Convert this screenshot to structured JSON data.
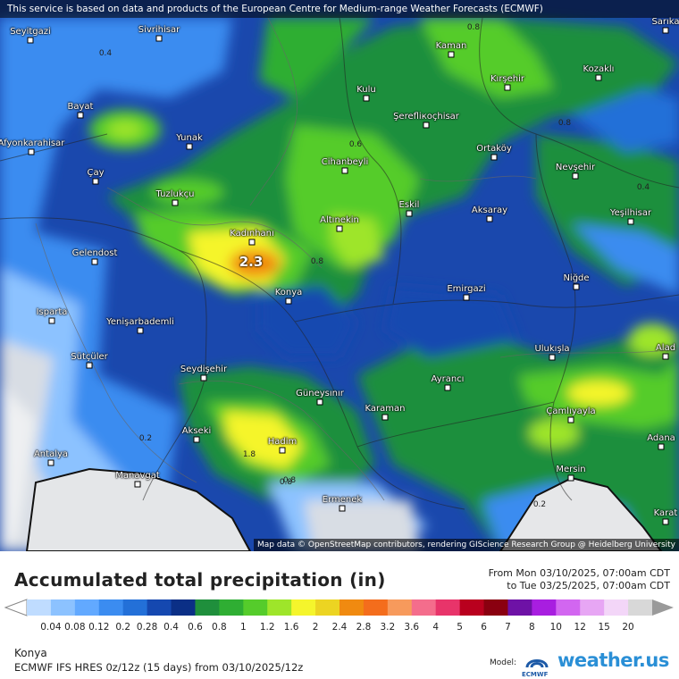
{
  "map": {
    "banner": "This service is based on data and products of the European Centre for Medium-range Weather Forecasts (ECMWF)",
    "attribution": "Map data © OpenStreetMap contributors, rendering GIScience Research Group @ Heidelberg University",
    "max_value": "2.3",
    "cities": [
      {
        "name": "Seyitgazi"
      },
      {
        "name": "Sivrihisar"
      },
      {
        "name": "Kaman"
      },
      {
        "name": "Sarıka"
      },
      {
        "name": "Kozaklı"
      },
      {
        "name": "Kırşehir"
      },
      {
        "name": "Kulu"
      },
      {
        "name": "Bayat"
      },
      {
        "name": "Şerefliкoçhisar"
      },
      {
        "name": "Afyonkarahisar"
      },
      {
        "name": "Yunak"
      },
      {
        "name": "Ortaköy"
      },
      {
        "name": "Cihanbeyli"
      },
      {
        "name": "Nevşehir"
      },
      {
        "name": "Çay"
      },
      {
        "name": "Tuzlukçu"
      },
      {
        "name": "Eskil"
      },
      {
        "name": "Aksaray"
      },
      {
        "name": "Yeşilhisar"
      },
      {
        "name": "Kadınhanı"
      },
      {
        "name": "Altınekin"
      },
      {
        "name": "Gelendost"
      },
      {
        "name": "Konya"
      },
      {
        "name": "Niğde"
      },
      {
        "name": "Emirgazi"
      },
      {
        "name": "Isparta"
      },
      {
        "name": "Yenişarbademli"
      },
      {
        "name": "Ulukışla"
      },
      {
        "name": "Sütçüler"
      },
      {
        "name": "Seydişehir"
      },
      {
        "name": "Alad"
      },
      {
        "name": "Güneysınır"
      },
      {
        "name": "Ayrancı"
      },
      {
        "name": "Karaman"
      },
      {
        "name": "Çamlıyayla"
      },
      {
        "name": "Akseki"
      },
      {
        "name": "Hadim"
      },
      {
        "name": "Adana"
      },
      {
        "name": "Antalya"
      },
      {
        "name": "Manavgat"
      },
      {
        "name": "Mersin"
      },
      {
        "name": "Ermenek"
      },
      {
        "name": "Karat"
      }
    ],
    "contours": [
      "0.4",
      "0.8",
      "0.6",
      "0.8",
      "0.8",
      "0.4",
      "0.8",
      "0.2",
      "1.8",
      "0.8",
      "0.2"
    ]
  },
  "footer": {
    "title": "Accumulated total precipitation (in)",
    "from": "From Mon 03/10/2025, 07:00am CDT",
    "to": "to Tue 03/25/2025, 07:00am CDT",
    "scale_labels": [
      "0.04",
      "0.08",
      "0.12",
      "0.2",
      "0.28",
      "0.4",
      "0.6",
      "0.8",
      "1",
      "1.2",
      "1.6",
      "2",
      "2.4",
      "2.8",
      "3.2",
      "3.6",
      "4",
      "5",
      "6",
      "7",
      "8",
      "10",
      "12",
      "15",
      "20"
    ],
    "scale_colors": [
      "#bfdcff",
      "#8cc2ff",
      "#62a9ff",
      "#3b8cf0",
      "#2370d8",
      "#1548b0",
      "#0b2f86",
      "#1f8f3c",
      "#2fae33",
      "#55cc2b",
      "#9ee52a",
      "#f5f52c",
      "#ecd422",
      "#f08a10",
      "#f46d1c",
      "#f79a5c",
      "#f46d8c",
      "#e8346a",
      "#b9001e",
      "#8a0010",
      "#6e12a6",
      "#a81ee0",
      "#d266f0",
      "#e7a6f4",
      "#f3d6f8",
      "#d8d8d8"
    ],
    "place": "Konya",
    "model": "ECMWF IFS HRES 0z/12z (15 days) from 03/10/2025/12z",
    "model_label": "Model:",
    "ecmwf": "ECMWF",
    "brand": "weather.us"
  }
}
